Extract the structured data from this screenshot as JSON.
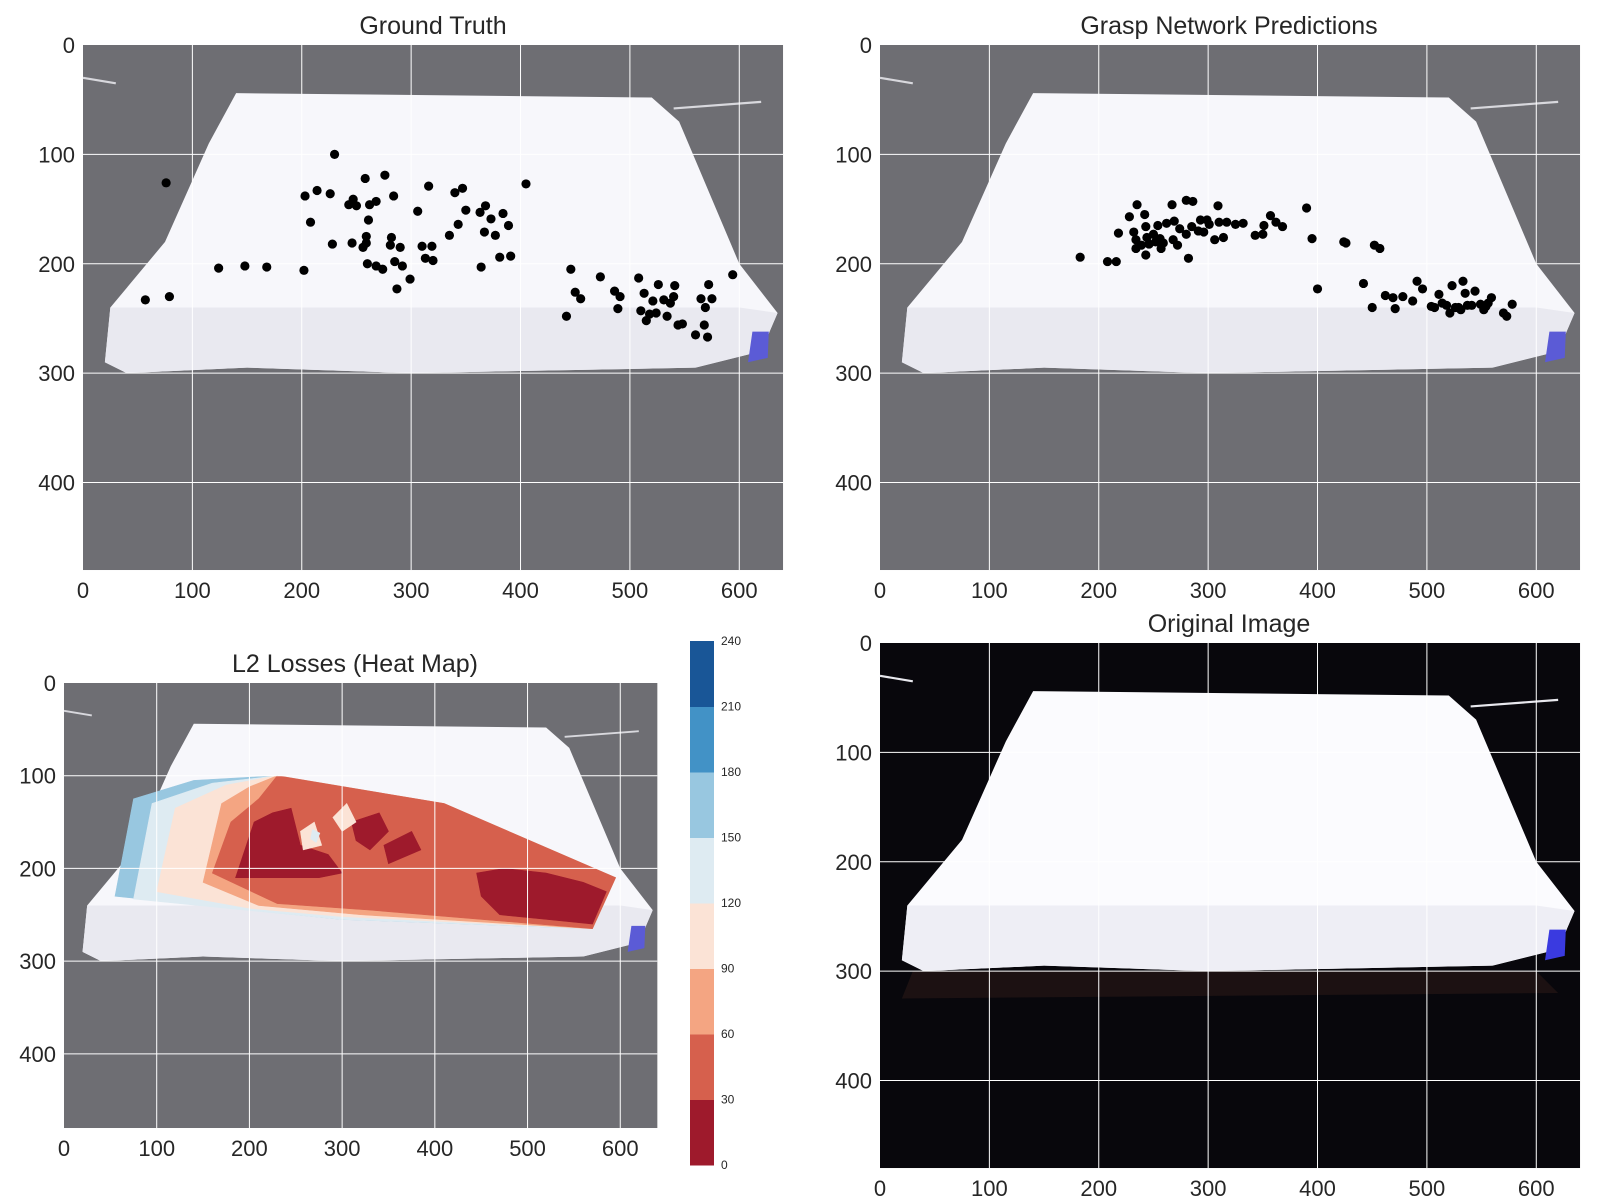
{
  "figure": {
    "panels": [
      {
        "id": "gt",
        "title": "Ground Truth"
      },
      {
        "id": "pred",
        "title": "Grasp Network Predictions"
      },
      {
        "id": "heat",
        "title": "L2 Losses (Heat Map)"
      },
      {
        "id": "orig",
        "title": "Original Image"
      }
    ],
    "image_size": {
      "width": 640,
      "height": 480
    },
    "colors": {
      "point": "#000000",
      "axes_bg_dim": "#6e6e73",
      "axes_bg_dark": "#08070c",
      "grid": "#ffffff",
      "sheet": "#f7f7fb",
      "sheet_shadow": "#e9e9f0",
      "blue_marker": "#5b5bd6"
    }
  },
  "chart_data": [
    {
      "type": "scatter",
      "panel": "gt",
      "title": "Ground Truth",
      "xlim": [
        0,
        640
      ],
      "ylim": [
        480,
        0
      ],
      "xticks": [
        0,
        100,
        200,
        300,
        400,
        500,
        600
      ],
      "yticks": [
        0,
        100,
        200,
        300,
        400
      ],
      "grid": true,
      "points": [
        [
          57,
          233
        ],
        [
          76,
          126
        ],
        [
          79,
          230
        ],
        [
          124,
          204
        ],
        [
          148,
          202
        ],
        [
          168,
          203
        ],
        [
          202,
          206
        ],
        [
          203,
          138
        ],
        [
          208,
          162
        ],
        [
          214,
          133
        ],
        [
          226,
          136
        ],
        [
          228,
          182
        ],
        [
          230,
          100
        ],
        [
          243,
          146
        ],
        [
          246,
          181
        ],
        [
          247,
          141
        ],
        [
          250,
          147
        ],
        [
          256,
          185
        ],
        [
          258,
          122
        ],
        [
          259,
          175
        ],
        [
          259,
          181
        ],
        [
          260,
          200
        ],
        [
          261,
          160
        ],
        [
          262,
          146
        ],
        [
          268,
          143
        ],
        [
          268,
          202
        ],
        [
          274,
          205
        ],
        [
          276,
          119
        ],
        [
          281,
          183
        ],
        [
          282,
          176
        ],
        [
          284,
          138
        ],
        [
          285,
          198
        ],
        [
          287,
          223
        ],
        [
          290,
          185
        ],
        [
          292,
          202
        ],
        [
          299,
          214
        ],
        [
          306,
          152
        ],
        [
          310,
          184
        ],
        [
          313,
          195
        ],
        [
          316,
          129
        ],
        [
          319,
          184
        ],
        [
          320,
          197
        ],
        [
          335,
          174
        ],
        [
          340,
          135
        ],
        [
          343,
          164
        ],
        [
          347,
          131
        ],
        [
          350,
          151
        ],
        [
          363,
          153
        ],
        [
          364,
          203
        ],
        [
          367,
          171
        ],
        [
          368,
          147
        ],
        [
          373,
          159
        ],
        [
          377,
          174
        ],
        [
          381,
          194
        ],
        [
          384,
          154
        ],
        [
          389,
          165
        ],
        [
          391,
          193
        ],
        [
          405,
          127
        ],
        [
          442,
          248
        ],
        [
          446,
          205
        ],
        [
          450,
          226
        ],
        [
          455,
          232
        ],
        [
          473,
          212
        ],
        [
          486,
          225
        ],
        [
          489,
          241
        ],
        [
          491,
          230
        ],
        [
          508,
          213
        ],
        [
          510,
          243
        ],
        [
          513,
          227
        ],
        [
          515,
          252
        ],
        [
          518,
          246
        ],
        [
          521,
          234
        ],
        [
          524,
          245
        ],
        [
          526,
          219
        ],
        [
          531,
          233
        ],
        [
          534,
          248
        ],
        [
          537,
          236
        ],
        [
          540,
          230
        ],
        [
          541,
          220
        ],
        [
          544,
          256
        ],
        [
          548,
          255
        ],
        [
          560,
          265
        ],
        [
          565,
          232
        ],
        [
          568,
          256
        ],
        [
          569,
          240
        ],
        [
          571,
          267
        ],
        [
          572,
          219
        ],
        [
          575,
          232
        ],
        [
          594,
          210
        ]
      ]
    },
    {
      "type": "scatter",
      "panel": "pred",
      "title": "Grasp Network Predictions",
      "xlim": [
        0,
        640
      ],
      "ylim": [
        480,
        0
      ],
      "xticks": [
        0,
        100,
        200,
        300,
        400,
        500,
        600
      ],
      "yticks": [
        0,
        100,
        200,
        300,
        400
      ],
      "grid": true,
      "points": [
        [
          183,
          194
        ],
        [
          208,
          198
        ],
        [
          216,
          198
        ],
        [
          218,
          172
        ],
        [
          228,
          157
        ],
        [
          232,
          171
        ],
        [
          234,
          186
        ],
        [
          234,
          178
        ],
        [
          235,
          146
        ],
        [
          239,
          183
        ],
        [
          242,
          155
        ],
        [
          243,
          192
        ],
        [
          243,
          166
        ],
        [
          244,
          176
        ],
        [
          246,
          182
        ],
        [
          250,
          173
        ],
        [
          252,
          180
        ],
        [
          254,
          165
        ],
        [
          256,
          177
        ],
        [
          257,
          186
        ],
        [
          259,
          181
        ],
        [
          262,
          163
        ],
        [
          267,
          146
        ],
        [
          268,
          178
        ],
        [
          269,
          161
        ],
        [
          272,
          183
        ],
        [
          274,
          168
        ],
        [
          280,
          142
        ],
        [
          280,
          173
        ],
        [
          282,
          195
        ],
        [
          285,
          166
        ],
        [
          286,
          143
        ],
        [
          291,
          170
        ],
        [
          293,
          160
        ],
        [
          296,
          171
        ],
        [
          299,
          160
        ],
        [
          301,
          164
        ],
        [
          306,
          178
        ],
        [
          309,
          147
        ],
        [
          310,
          162
        ],
        [
          314,
          176
        ],
        [
          317,
          162
        ],
        [
          325,
          164
        ],
        [
          332,
          163
        ],
        [
          343,
          174
        ],
        [
          350,
          173
        ],
        [
          351,
          165
        ],
        [
          357,
          156
        ],
        [
          362,
          162
        ],
        [
          368,
          166
        ],
        [
          390,
          149
        ],
        [
          395,
          177
        ],
        [
          400,
          223
        ],
        [
          424,
          180
        ],
        [
          426,
          181
        ],
        [
          442,
          218
        ],
        [
          450,
          240
        ],
        [
          452,
          183
        ],
        [
          457,
          186
        ],
        [
          462,
          229
        ],
        [
          469,
          231
        ],
        [
          471,
          241
        ],
        [
          478,
          230
        ],
        [
          487,
          234
        ],
        [
          491,
          216
        ],
        [
          496,
          223
        ],
        [
          504,
          239
        ],
        [
          507,
          240
        ],
        [
          511,
          228
        ],
        [
          514,
          236
        ],
        [
          518,
          238
        ],
        [
          521,
          245
        ],
        [
          523,
          220
        ],
        [
          526,
          240
        ],
        [
          529,
          240
        ],
        [
          531,
          242
        ],
        [
          533,
          216
        ],
        [
          535,
          227
        ],
        [
          537,
          238
        ],
        [
          541,
          238
        ],
        [
          544,
          225
        ],
        [
          549,
          237
        ],
        [
          552,
          242
        ],
        [
          554,
          239
        ],
        [
          556,
          236
        ],
        [
          559,
          231
        ],
        [
          570,
          245
        ],
        [
          573,
          248
        ],
        [
          578,
          237
        ]
      ]
    },
    {
      "type": "heatmap",
      "panel": "heat",
      "title": "L2 Losses (Heat Map)",
      "xlim": [
        0,
        640
      ],
      "ylim": [
        480,
        0
      ],
      "xticks": [
        0,
        100,
        200,
        300,
        400,
        500,
        600
      ],
      "yticks": [
        0,
        100,
        200,
        300,
        400
      ],
      "grid": true,
      "colorbar": {
        "levels": [
          0,
          30,
          60,
          90,
          120,
          150,
          180,
          210,
          240
        ],
        "colors": [
          "#9e1a2c",
          "#d6604d",
          "#f4a582",
          "#fbe3d6",
          "#deebf2",
          "#98c7e0",
          "#4292c6",
          "#195697"
        ]
      },
      "regions": [
        {
          "level_index": 5,
          "polygon": [
            [
              55,
              230
            ],
            [
              75,
              125
            ],
            [
              140,
              105
            ],
            [
              230,
              100
            ],
            [
              410,
              130
            ],
            [
              595,
              210
            ],
            [
              570,
              265
            ],
            [
              300,
              255
            ],
            [
              200,
              245
            ]
          ]
        },
        {
          "level_index": 4,
          "polygon": [
            [
              75,
              233
            ],
            [
              95,
              130
            ],
            [
              160,
              108
            ],
            [
              230,
              100
            ],
            [
              410,
              130
            ],
            [
              595,
              210
            ],
            [
              570,
              265
            ],
            [
              300,
              255
            ],
            [
              195,
              245
            ]
          ]
        },
        {
          "level_index": 3,
          "polygon": [
            [
              100,
              225
            ],
            [
              120,
              135
            ],
            [
              175,
              110
            ],
            [
              230,
              100
            ],
            [
              410,
              130
            ],
            [
              595,
              210
            ],
            [
              570,
              265
            ],
            [
              300,
              252
            ],
            [
              200,
              243
            ]
          ]
        },
        {
          "level_index": 2,
          "polygon": [
            [
              150,
              215
            ],
            [
              170,
              130
            ],
            [
              200,
              112
            ],
            [
              230,
              100
            ],
            [
              410,
              130
            ],
            [
              595,
              210
            ],
            [
              570,
              265
            ],
            [
              320,
              250
            ],
            [
              210,
              240
            ]
          ]
        },
        {
          "level_index": 1,
          "polygon": [
            [
              160,
              205
            ],
            [
              180,
              150
            ],
            [
              210,
              125
            ],
            [
              230,
              100
            ],
            [
              410,
              130
            ],
            [
              595,
              210
            ],
            [
              570,
              265
            ],
            [
              330,
              245
            ],
            [
              230,
              238
            ]
          ]
        },
        {
          "level_index": 0,
          "polygon": [
            [
              185,
              210
            ],
            [
              205,
              150
            ],
            [
              225,
              140
            ],
            [
              245,
              135
            ],
            [
              255,
              175
            ],
            [
              285,
              185
            ],
            [
              300,
              205
            ],
            [
              275,
              210
            ]
          ]
        },
        {
          "level_index": 0,
          "polygon": [
            [
              310,
              150
            ],
            [
              340,
              140
            ],
            [
              350,
              160
            ],
            [
              330,
              180
            ],
            [
              315,
              170
            ]
          ]
        },
        {
          "level_index": 0,
          "polygon": [
            [
              345,
              175
            ],
            [
              375,
              160
            ],
            [
              385,
              180
            ],
            [
              350,
              195
            ]
          ]
        },
        {
          "level_index": 0,
          "polygon": [
            [
              445,
              205
            ],
            [
              475,
              200
            ],
            [
              520,
              205
            ],
            [
              560,
              215
            ],
            [
              585,
              225
            ],
            [
              570,
              260
            ],
            [
              520,
              255
            ],
            [
              470,
              250
            ],
            [
              450,
              230
            ]
          ]
        },
        {
          "level_index": 3,
          "polygon": [
            [
              255,
              160
            ],
            [
              270,
              150
            ],
            [
              278,
              175
            ],
            [
              258,
              180
            ]
          ]
        },
        {
          "level_index": 4,
          "polygon": [
            [
              268,
              158
            ],
            [
              276,
              162
            ],
            [
              272,
              172
            ],
            [
              266,
              168
            ]
          ]
        },
        {
          "level_index": 3,
          "polygon": [
            [
              130,
              190
            ],
            [
              140,
              170
            ],
            [
              150,
              195
            ]
          ]
        },
        {
          "level_index": 3,
          "polygon": [
            [
              290,
              145
            ],
            [
              305,
              130
            ],
            [
              315,
              150
            ],
            [
              300,
              160
            ]
          ]
        }
      ]
    }
  ]
}
